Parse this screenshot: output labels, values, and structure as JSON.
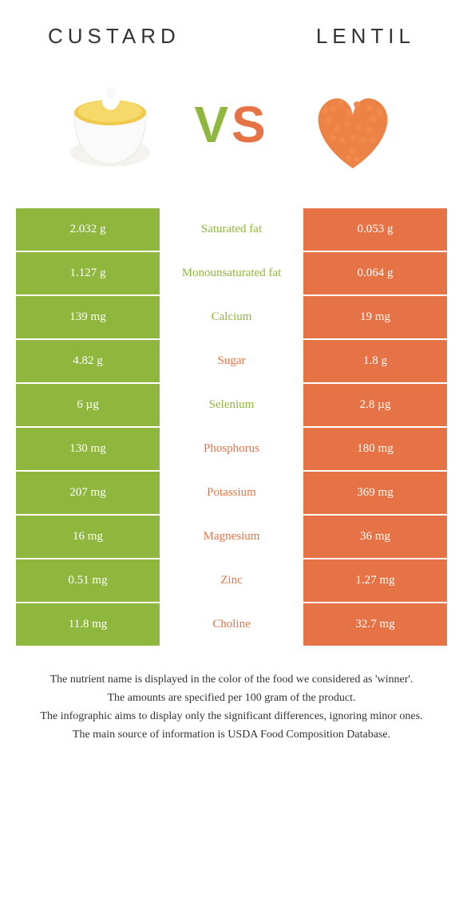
{
  "colors": {
    "left": "#8fb73e",
    "right": "#e67345",
    "vs_left": "#8fb73e",
    "vs_right": "#e67345"
  },
  "left_food": {
    "title": "CUSTARD"
  },
  "right_food": {
    "title": "LENTIL"
  },
  "vs_text": "VS",
  "rows": [
    {
      "left": "2.032 g",
      "label": "Saturated fat",
      "right": "0.053 g",
      "winner": "left"
    },
    {
      "left": "1.127 g",
      "label": "Monounsaturated fat",
      "right": "0.064 g",
      "winner": "left"
    },
    {
      "left": "139 mg",
      "label": "Calcium",
      "right": "19 mg",
      "winner": "left"
    },
    {
      "left": "4.82 g",
      "label": "Sugar",
      "right": "1.8 g",
      "winner": "right"
    },
    {
      "left": "6 µg",
      "label": "Selenium",
      "right": "2.8 µg",
      "winner": "left"
    },
    {
      "left": "130 mg",
      "label": "Phosphorus",
      "right": "180 mg",
      "winner": "right"
    },
    {
      "left": "207 mg",
      "label": "Potassium",
      "right": "369 mg",
      "winner": "right"
    },
    {
      "left": "16 mg",
      "label": "Magnesium",
      "right": "36 mg",
      "winner": "right"
    },
    {
      "left": "0.51 mg",
      "label": "Zinc",
      "right": "1.27 mg",
      "winner": "right"
    },
    {
      "left": "11.8 mg",
      "label": "Choline",
      "right": "32.7 mg",
      "winner": "right"
    }
  ],
  "footnotes": [
    "The nutrient name is displayed in the color of the food we considered as 'winner'.",
    "The amounts are specified per 100 gram of the product.",
    "The infographic aims to display only the significant differences, ignoring minor ones.",
    "The main source of information is USDA Food Composition Database."
  ]
}
